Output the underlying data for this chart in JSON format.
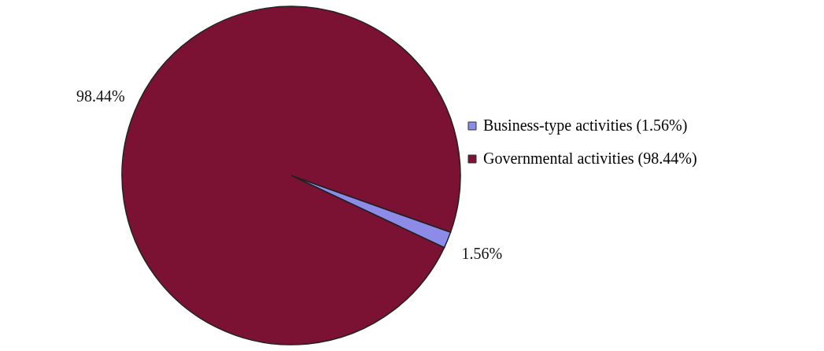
{
  "chart_data": {
    "type": "pie",
    "categories": [
      "Business-type activities (1.56%)",
      "Governmental activities (98.44%)"
    ],
    "values": [
      1.56,
      98.44
    ],
    "colors": [
      "#8c8ce8",
      "#7b1133"
    ],
    "value_labels": [
      "1.56%",
      "98.44%"
    ],
    "legend": "right"
  }
}
